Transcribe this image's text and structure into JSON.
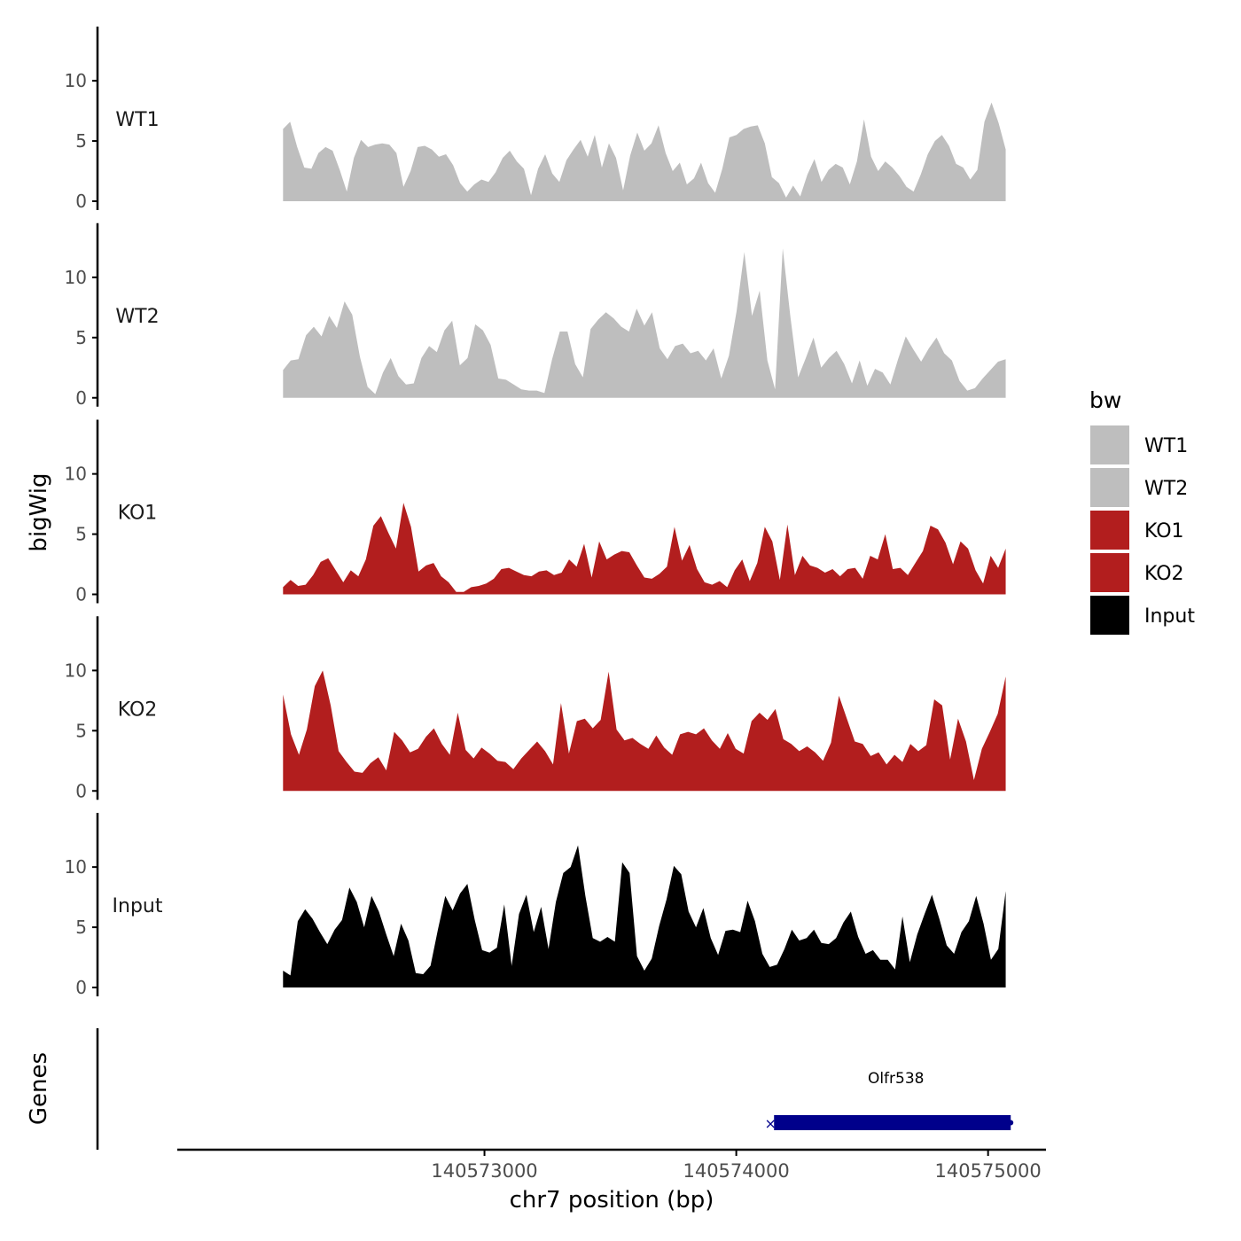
{
  "chart_data": {
    "type": "area",
    "title": "",
    "ylabel": "bigWig",
    "xlabel": "chr7 position (bp)",
    "genes_label": "Genes",
    "xlim": [
      140571780,
      140575230
    ],
    "ylim": [
      0,
      14.5
    ],
    "x_ticks": [
      140573000,
      140574000,
      140575000
    ],
    "x_tick_labels": [
      "140573000",
      "140574000",
      "140575000"
    ],
    "y_ticks": [
      0,
      5,
      10
    ],
    "y_tick_labels": [
      "0",
      "5",
      "10"
    ],
    "x_start": 140572200,
    "x_end": 140575070,
    "legend": {
      "title": "bw",
      "position": "right",
      "entries": [
        {
          "label": "WT1",
          "color": "#bebebe"
        },
        {
          "label": "WT2",
          "color": "#bebebe"
        },
        {
          "label": "KO1",
          "color": "#b21e1e"
        },
        {
          "label": "KO2",
          "color": "#b21e1e"
        },
        {
          "label": "Input",
          "color": "#000000"
        }
      ]
    },
    "series": [
      {
        "name": "WT1",
        "color": "#bebebe",
        "values": [
          6.0,
          6.6,
          4.5,
          2.8,
          2.7,
          4.0,
          4.5,
          4.2,
          2.6,
          0.8,
          3.6,
          5.1,
          4.5,
          4.7,
          4.8,
          4.7,
          4.0,
          1.2,
          2.5,
          4.5,
          4.6,
          4.3,
          3.7,
          3.9,
          3.0,
          1.5,
          0.8,
          1.4,
          1.8,
          1.6,
          2.4,
          3.6,
          4.2,
          3.3,
          2.7,
          0.5,
          2.7,
          3.9,
          2.3,
          1.6,
          3.4,
          4.3,
          5.1,
          3.7,
          5.5,
          2.8,
          4.8,
          3.6,
          0.9,
          3.8,
          5.7,
          4.2,
          4.8,
          6.3,
          4.0,
          2.5,
          3.2,
          1.4,
          1.9,
          3.2,
          1.5,
          0.7,
          2.7,
          5.3,
          5.5,
          6.0,
          6.2,
          6.3,
          4.8,
          2.0,
          1.5,
          0.3,
          1.3,
          0.4,
          2.2,
          3.5,
          1.6,
          2.6,
          3.1,
          2.8,
          1.4,
          3.3,
          6.8,
          3.7,
          2.5,
          3.3,
          2.8,
          2.1,
          1.2,
          0.8,
          2.2,
          3.9,
          5.0,
          5.5,
          4.6,
          3.1,
          2.8,
          1.8,
          2.6,
          6.6,
          8.2,
          6.5,
          4.3
        ]
      },
      {
        "name": "WT2",
        "color": "#bebebe",
        "values": [
          2.3,
          3.1,
          3.2,
          5.2,
          5.9,
          5.1,
          6.8,
          5.8,
          8.0,
          6.9,
          3.4,
          0.9,
          0.3,
          2.1,
          3.3,
          1.8,
          1.1,
          1.2,
          3.3,
          4.3,
          3.8,
          5.6,
          6.4,
          2.7,
          3.3,
          6.1,
          5.6,
          4.4,
          1.6,
          1.5,
          1.1,
          0.7,
          0.6,
          0.6,
          0.4,
          3.2,
          5.5,
          5.5,
          2.8,
          1.7,
          5.7,
          6.5,
          7.1,
          6.6,
          5.9,
          5.5,
          7.4,
          6.0,
          7.1,
          4.1,
          3.2,
          4.3,
          4.5,
          3.7,
          3.9,
          3.1,
          4.1,
          1.6,
          3.5,
          7.2,
          12.1,
          6.8,
          8.9,
          3.1,
          0.7,
          12.4,
          6.7,
          1.7,
          3.3,
          5.0,
          2.5,
          3.3,
          3.9,
          2.8,
          1.2,
          3.1,
          1.0,
          2.4,
          2.1,
          1.1,
          3.2,
          5.1,
          4.0,
          3.0,
          4.1,
          5.0,
          3.7,
          3.1,
          1.4,
          0.6,
          0.8,
          1.6,
          2.3,
          3.0,
          3.2
        ]
      },
      {
        "name": "KO1",
        "color": "#b21e1e",
        "values": [
          0.6,
          1.2,
          0.7,
          0.8,
          1.6,
          2.7,
          3.0,
          2.0,
          1.0,
          2.0,
          1.5,
          2.9,
          5.7,
          6.5,
          5.1,
          3.8,
          7.6,
          5.6,
          1.9,
          2.4,
          2.6,
          1.5,
          1.0,
          0.2,
          0.2,
          0.6,
          0.7,
          0.9,
          1.3,
          2.1,
          2.2,
          1.9,
          1.6,
          1.5,
          1.9,
          2.0,
          1.6,
          1.8,
          2.9,
          2.3,
          4.2,
          1.4,
          4.4,
          2.9,
          3.3,
          3.6,
          3.5,
          2.4,
          1.4,
          1.3,
          1.7,
          2.3,
          5.6,
          2.8,
          4.1,
          2.1,
          1.0,
          0.8,
          1.1,
          0.6,
          2.0,
          2.9,
          1.1,
          2.6,
          5.6,
          4.4,
          1.2,
          5.8,
          1.6,
          3.2,
          2.4,
          2.2,
          1.8,
          2.1,
          1.5,
          2.1,
          2.2,
          1.3,
          3.2,
          2.9,
          5.0,
          2.1,
          2.2,
          1.6,
          2.6,
          3.6,
          5.7,
          5.4,
          4.3,
          2.5,
          4.4,
          3.8,
          2.0,
          0.9,
          3.2,
          2.2,
          3.8
        ]
      },
      {
        "name": "KO2",
        "color": "#b21e1e",
        "values": [
          8.0,
          4.7,
          3.0,
          5.1,
          8.7,
          10.0,
          7.1,
          3.3,
          2.4,
          1.6,
          1.5,
          2.3,
          2.8,
          1.7,
          4.9,
          4.2,
          3.2,
          3.5,
          4.5,
          5.2,
          3.9,
          3.0,
          6.5,
          3.4,
          2.7,
          3.6,
          3.1,
          2.5,
          2.4,
          1.8,
          2.7,
          3.4,
          4.1,
          3.3,
          2.2,
          7.3,
          3.1,
          5.8,
          6.0,
          5.2,
          5.9,
          9.9,
          5.1,
          4.2,
          4.4,
          3.9,
          3.5,
          4.6,
          3.6,
          3.0,
          4.7,
          4.9,
          4.7,
          5.2,
          4.2,
          3.5,
          4.8,
          3.5,
          3.1,
          5.8,
          6.5,
          5.9,
          6.8,
          4.3,
          3.9,
          3.3,
          3.7,
          3.2,
          2.5,
          4.0,
          7.9,
          6.0,
          4.1,
          3.9,
          2.9,
          3.2,
          2.2,
          3.0,
          2.4,
          3.9,
          3.3,
          3.8,
          7.6,
          7.1,
          2.6,
          6.0,
          4.1,
          0.9,
          3.5,
          4.9,
          6.4,
          9.5
        ]
      },
      {
        "name": "Input",
        "color": "#000000",
        "values": [
          1.4,
          1.0,
          5.5,
          6.5,
          5.7,
          4.6,
          3.6,
          4.8,
          5.6,
          8.3,
          7.1,
          5.0,
          7.6,
          6.3,
          4.4,
          2.6,
          5.3,
          3.9,
          1.2,
          1.1,
          1.8,
          4.8,
          7.6,
          6.4,
          7.8,
          8.6,
          5.6,
          3.1,
          2.9,
          3.3,
          6.9,
          1.8,
          6.1,
          7.7,
          4.6,
          6.7,
          3.2,
          7.1,
          9.5,
          10.0,
          11.8,
          7.6,
          4.1,
          3.8,
          4.2,
          3.8,
          10.4,
          9.5,
          2.6,
          1.4,
          2.4,
          5.1,
          7.3,
          10.1,
          9.4,
          6.3,
          5.0,
          6.6,
          4.1,
          2.7,
          4.7,
          4.8,
          4.6,
          7.2,
          5.5,
          2.8,
          1.7,
          1.9,
          3.2,
          4.8,
          3.9,
          4.1,
          4.8,
          3.7,
          3.6,
          4.1,
          5.4,
          6.3,
          4.2,
          2.8,
          3.1,
          2.3,
          2.3,
          1.5,
          5.9,
          2.1,
          4.4,
          6.1,
          7.7,
          5.7,
          3.5,
          2.8,
          4.6,
          5.5,
          7.6,
          5.3,
          2.3,
          3.2,
          8.0
        ]
      }
    ],
    "gene_track": {
      "name": "Olfr538",
      "start": 140574150,
      "end": 140575090,
      "color": "#00008b"
    }
  }
}
